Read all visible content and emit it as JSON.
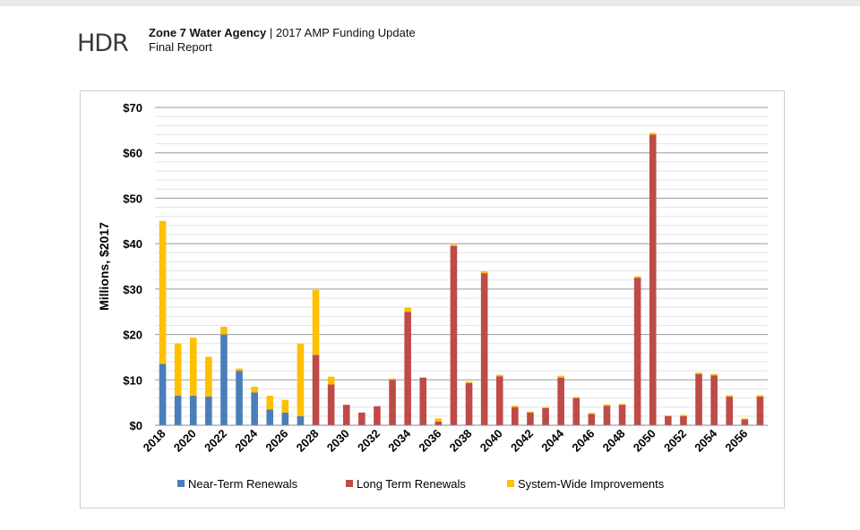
{
  "header": {
    "logo_text": "HDR",
    "agency": "Zone 7 Water Agency",
    "separator": " | ",
    "report_title": "2017 AMP Funding Update",
    "subtitle": "Final Report"
  },
  "chart_data": {
    "type": "bar",
    "stacked": true,
    "ylabel": "Millions, $2017",
    "xlabel": "",
    "ylim": [
      0,
      70
    ],
    "grid": true,
    "legend_position": "bottom",
    "y_ticks": [
      "$0",
      "$10",
      "$20",
      "$30",
      "$40",
      "$50",
      "$60",
      "$70"
    ],
    "x_tick_labels": [
      "2018",
      "2020",
      "2022",
      "2024",
      "2026",
      "2028",
      "2030",
      "2032",
      "2034",
      "2036",
      "2038",
      "2040",
      "2042",
      "2044",
      "2046",
      "2048",
      "2050",
      "2052",
      "2054",
      "2056"
    ],
    "categories": [
      2018,
      2019,
      2020,
      2021,
      2022,
      2023,
      2024,
      2025,
      2026,
      2027,
      2028,
      2029,
      2030,
      2031,
      2032,
      2033,
      2034,
      2035,
      2036,
      2037,
      2038,
      2039,
      2040,
      2041,
      2042,
      2043,
      2044,
      2045,
      2046,
      2047,
      2048,
      2049,
      2050,
      2051,
      2052,
      2053,
      2054,
      2055,
      2056,
      2057
    ],
    "series": [
      {
        "name": "Near-Term Renewals",
        "color": "#4a7ebb",
        "values": [
          13.5,
          6.5,
          6.5,
          6.3,
          20.0,
          12.0,
          7.2,
          3.5,
          2.8,
          2.0,
          0,
          0,
          0,
          0,
          0,
          0,
          0,
          0,
          0,
          0,
          0,
          0,
          0,
          0,
          0,
          0,
          0,
          0,
          0,
          0,
          0,
          0,
          0,
          0,
          0,
          0,
          0,
          0,
          0,
          0
        ]
      },
      {
        "name": "Long Term Renewals",
        "color": "#be4b48",
        "values": [
          0,
          0,
          0,
          0,
          0,
          0,
          0,
          0,
          0,
          0,
          15.5,
          9.0,
          4.5,
          2.8,
          4.2,
          10.0,
          25.0,
          10.5,
          0.8,
          39.5,
          9.3,
          33.5,
          10.8,
          4.0,
          2.8,
          3.8,
          10.5,
          6.0,
          2.5,
          4.3,
          4.5,
          32.5,
          64.0,
          2.0,
          2.0,
          11.3,
          11.0,
          6.3,
          1.3,
          6.3
        ]
      },
      {
        "name": "System-Wide Improvements",
        "color": "#ffc000",
        "values": [
          31.5,
          11.5,
          12.8,
          8.8,
          1.7,
          0.5,
          1.3,
          3.0,
          2.8,
          16.0,
          14.3,
          1.7,
          0,
          0,
          0,
          0.3,
          0.9,
          0,
          0.7,
          0.3,
          0.3,
          0.4,
          0.3,
          0.3,
          0.2,
          0.2,
          0.4,
          0.2,
          0.2,
          0.3,
          0.2,
          0.3,
          0.4,
          0.2,
          0.3,
          0.3,
          0.3,
          0.3,
          0.2,
          0.3
        ]
      }
    ]
  }
}
